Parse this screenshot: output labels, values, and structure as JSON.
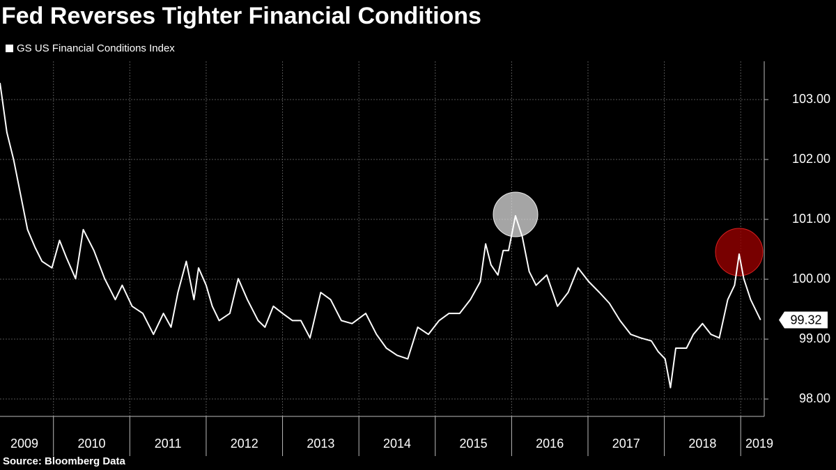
{
  "chart_data": {
    "type": "line",
    "title": "Fed Reverses Tighter Financial Conditions",
    "source": "Source: Bloomberg Data",
    "series": [
      {
        "name": "GS US Financial Conditions Index",
        "color": "#ffffff",
        "x": [
          2009.3,
          2009.39,
          2009.48,
          2009.57,
          2009.66,
          2009.76,
          2009.85,
          2009.98,
          2010.08,
          2010.17,
          2010.29,
          2010.39,
          2010.53,
          2010.67,
          2010.81,
          2010.9,
          2011.03,
          2011.17,
          2011.31,
          2011.44,
          2011.54,
          2011.63,
          2011.74,
          2011.84,
          2011.9,
          2012.0,
          2012.08,
          2012.17,
          2012.31,
          2012.42,
          2012.54,
          2012.68,
          2012.77,
          2012.88,
          2013.0,
          2013.13,
          2013.24,
          2013.36,
          2013.5,
          2013.63,
          2013.77,
          2013.91,
          2014.09,
          2014.23,
          2014.36,
          2014.5,
          2014.64,
          2014.77,
          2014.91,
          2015.05,
          2015.18,
          2015.32,
          2015.46,
          2015.59,
          2015.66,
          2015.73,
          2015.82,
          2015.89,
          2015.96,
          2016.05,
          2016.14,
          2016.23,
          2016.32,
          2016.46,
          2016.6,
          2016.74,
          2016.87,
          2017.01,
          2017.15,
          2017.28,
          2017.42,
          2017.56,
          2017.69,
          2017.83,
          2017.92,
          2018.01,
          2018.08,
          2018.15,
          2018.29,
          2018.38,
          2018.5,
          2018.61,
          2018.72,
          2018.83,
          2018.92,
          2018.98,
          2019.04,
          2019.13,
          2019.26
        ],
        "values": [
          103.28,
          102.45,
          101.99,
          101.41,
          100.83,
          100.53,
          100.3,
          100.19,
          100.65,
          100.36,
          100.01,
          100.83,
          100.48,
          100.01,
          99.66,
          99.9,
          99.55,
          99.43,
          99.08,
          99.43,
          99.2,
          99.78,
          100.3,
          99.66,
          100.19,
          99.9,
          99.55,
          99.31,
          99.43,
          100.01,
          99.66,
          99.31,
          99.2,
          99.55,
          99.43,
          99.31,
          99.31,
          99.02,
          99.78,
          99.66,
          99.31,
          99.26,
          99.43,
          99.08,
          98.85,
          98.73,
          98.67,
          99.2,
          99.08,
          99.31,
          99.43,
          99.43,
          99.66,
          99.96,
          100.59,
          100.24,
          100.07,
          100.48,
          100.48,
          101.06,
          100.71,
          100.13,
          99.9,
          100.07,
          99.55,
          99.78,
          100.19,
          99.96,
          99.78,
          99.6,
          99.31,
          99.08,
          99.02,
          98.97,
          98.79,
          98.67,
          98.19,
          98.85,
          98.85,
          99.08,
          99.26,
          99.08,
          99.02,
          99.66,
          99.9,
          100.42,
          100.01,
          99.66,
          99.32
        ]
      }
    ],
    "xlim": [
      2009.3,
      2019.29
    ],
    "xticks": [
      2009,
      2010,
      2011,
      2012,
      2013,
      2014,
      2015,
      2016,
      2017,
      2018,
      2019
    ],
    "ylim": [
      97.71,
      103.64
    ],
    "yticks": [
      {
        "value": 98,
        "label": "98.00"
      },
      {
        "value": 99,
        "label": "99.00"
      },
      {
        "value": 100,
        "label": "100.00"
      },
      {
        "value": 101,
        "label": "101.00"
      },
      {
        "value": 102,
        "label": "102.00"
      },
      {
        "value": 103,
        "label": "103.00"
      }
    ],
    "grid": true
  }
}
